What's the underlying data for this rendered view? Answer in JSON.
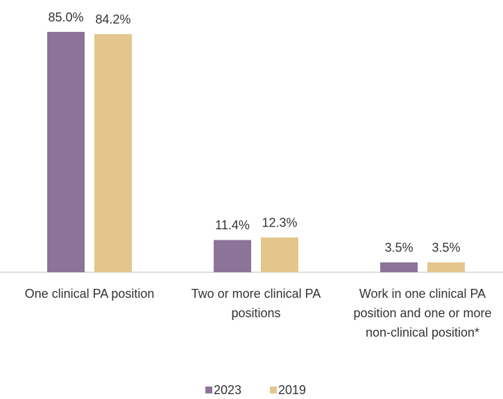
{
  "chart_data": {
    "type": "bar",
    "categories": [
      "One clinical PA position",
      "Two or more clinical PA positions",
      "Work in one clinical PA position and one or more non-clinical position*"
    ],
    "series": [
      {
        "name": "2023",
        "color": "#8c7399",
        "values": [
          85.0,
          11.4,
          3.5
        ],
        "value_labels": [
          "85.0%",
          "11.4%",
          "3.5%"
        ]
      },
      {
        "name": "2019",
        "color": "#e2c68b",
        "values": [
          84.2,
          12.3,
          3.5
        ],
        "value_labels": [
          "84.2%",
          "12.3%",
          "3.5%"
        ]
      }
    ],
    "legend": "bottom"
  }
}
